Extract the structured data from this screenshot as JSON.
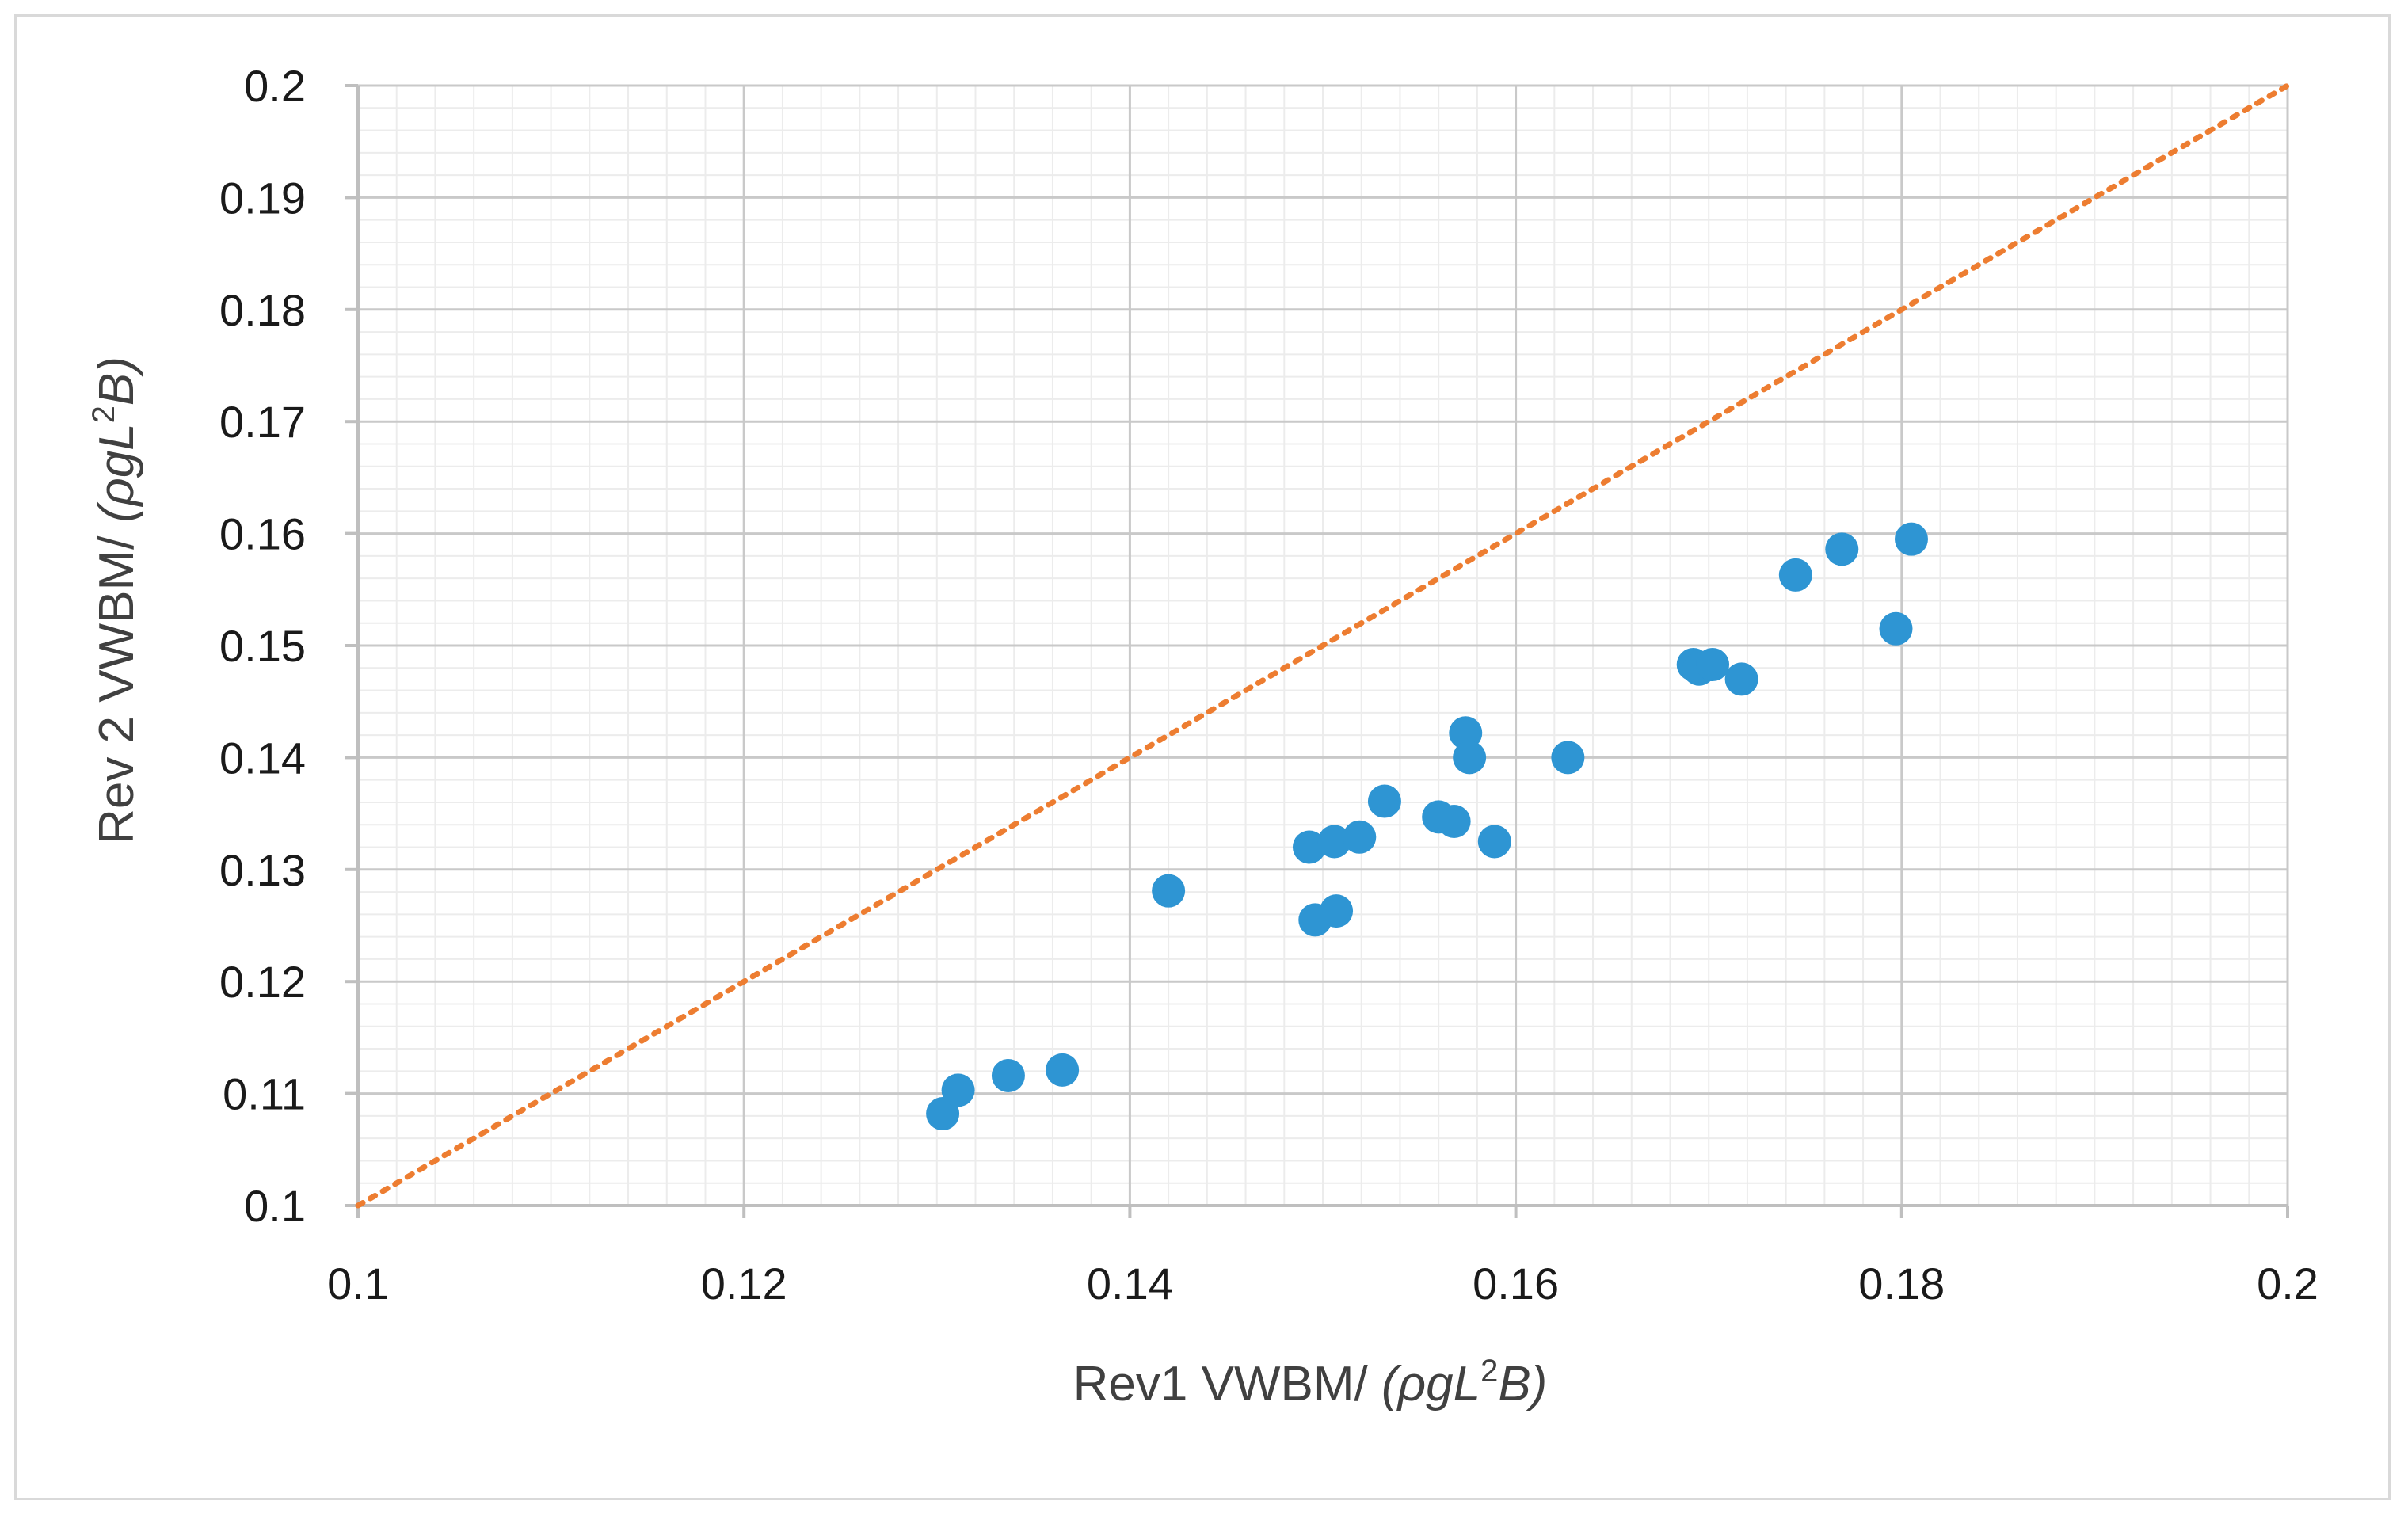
{
  "chart_data": {
    "type": "scatter",
    "title": "",
    "xlabel": {
      "prefix": "Rev1 VWBM/ ",
      "math": "(ρgL",
      "sup": "2",
      "math_end": "B)"
    },
    "ylabel": {
      "prefix": "Rev 2 VWBM/ ",
      "math": "(ρgL",
      "sup": "2",
      "math_end": "B)"
    },
    "xlim": [
      0.1,
      0.2
    ],
    "ylim": [
      0.1,
      0.2
    ],
    "x_ticks": [
      "0.1",
      "0.12",
      "0.14",
      "0.16",
      "0.18",
      "0.2"
    ],
    "y_ticks": [
      "0.1",
      "0.11",
      "0.12",
      "0.13",
      "0.14",
      "0.15",
      "0.16",
      "0.17",
      "0.18",
      "0.19",
      "0.2"
    ],
    "grid": true,
    "legend": "none",
    "series": [
      {
        "type": "scatter",
        "color": "#2e95d3",
        "points": [
          [
            0.1303,
            0.1082
          ],
          [
            0.1311,
            0.1103
          ],
          [
            0.1337,
            0.1116
          ],
          [
            0.1365,
            0.1121
          ],
          [
            0.142,
            0.1281
          ],
          [
            0.1493,
            0.132
          ],
          [
            0.1506,
            0.1325
          ],
          [
            0.1519,
            0.1329
          ],
          [
            0.1532,
            0.1361
          ],
          [
            0.1496,
            0.1255
          ],
          [
            0.1507,
            0.1263
          ],
          [
            0.156,
            0.1347
          ],
          [
            0.1568,
            0.1343
          ],
          [
            0.1589,
            0.1325
          ],
          [
            0.1574,
            0.1422
          ],
          [
            0.1576,
            0.14
          ],
          [
            0.1627,
            0.14
          ],
          [
            0.1692,
            0.1483
          ],
          [
            0.1695,
            0.1479
          ],
          [
            0.1702,
            0.1483
          ],
          [
            0.1717,
            0.147
          ],
          [
            0.1745,
            0.1563
          ],
          [
            0.1769,
            0.1586
          ],
          [
            0.1797,
            0.1515
          ],
          [
            0.1805,
            0.1595
          ]
        ]
      },
      {
        "type": "line",
        "style": "dotted",
        "color": "#ed7d31",
        "points": [
          [
            0.1,
            0.1
          ],
          [
            0.2,
            0.2
          ]
        ]
      }
    ]
  }
}
